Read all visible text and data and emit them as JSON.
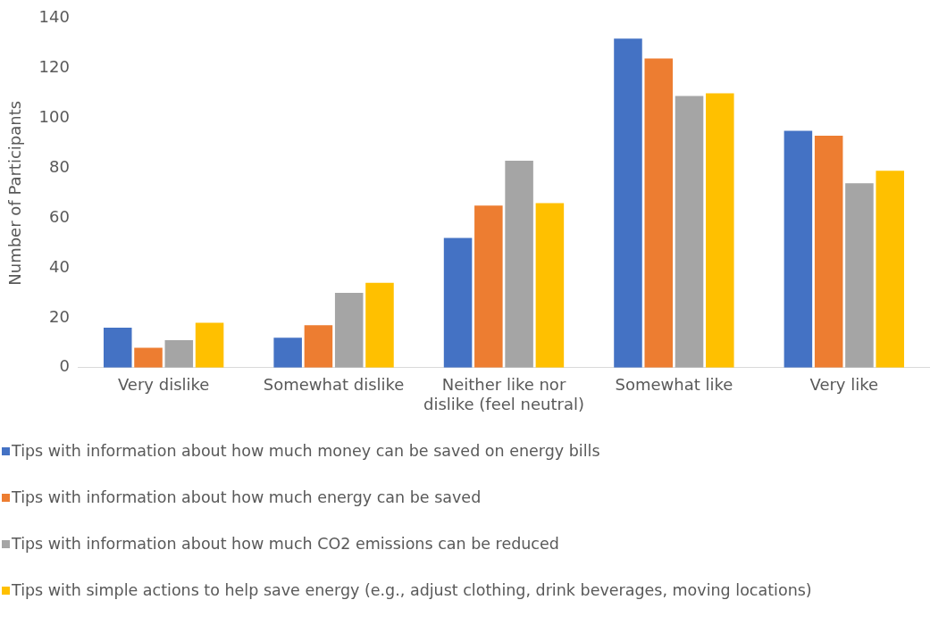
{
  "chart_data": {
    "type": "bar",
    "ylabel": "Number of Participants",
    "categories": [
      "Very dislike",
      "Somewhat dislike",
      "Neither like nor dislike (feel neutral)",
      "Somewhat like",
      "Very like"
    ],
    "series": [
      {
        "name": "Tips with information about how much money can be saved on energy bills",
        "color": "#4472c4",
        "values": [
          16,
          12,
          52,
          132,
          95
        ]
      },
      {
        "name": "Tips with information about how much energy can be saved",
        "color": "#ed7d31",
        "values": [
          8,
          17,
          65,
          124,
          93
        ]
      },
      {
        "name": "Tips with information about how much CO2 emissions can be reduced",
        "color": "#a5a5a5",
        "values": [
          11,
          30,
          83,
          109,
          74
        ]
      },
      {
        "name": "Tips with simple actions to help save energy (e.g., adjust clothing, drink beverages, moving locations)",
        "color": "#ffc000",
        "values": [
          18,
          34,
          66,
          110,
          79
        ]
      }
    ],
    "ylim": [
      0,
      140
    ],
    "yticks": [
      0,
      20,
      40,
      60,
      80,
      100,
      120,
      140
    ],
    "grid": false,
    "legend": "bottom"
  }
}
